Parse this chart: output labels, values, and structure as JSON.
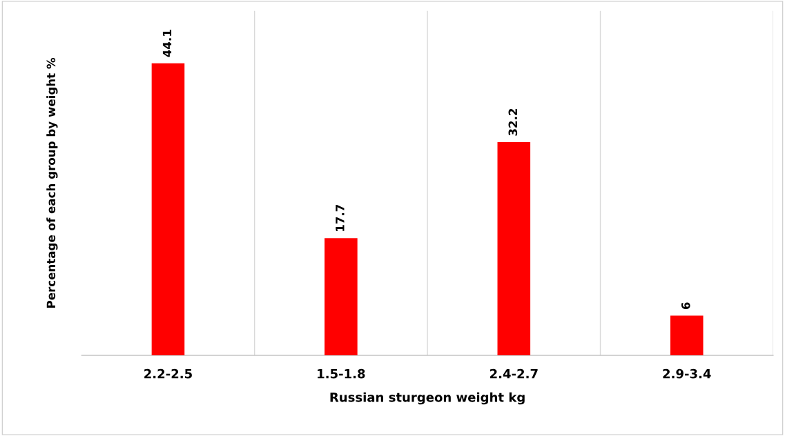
{
  "chart_data": {
    "type": "bar",
    "xlabel": "Russian sturgeon weight kg",
    "ylabel": "Percentage of each group by weight %",
    "categories": [
      "2.2-2.5",
      "1.5-1.8",
      "2.4-2.7",
      "2.9-3.4"
    ],
    "values": [
      44.1,
      17.7,
      32.2,
      6
    ],
    "color": "#ff0000",
    "ylim": [
      0,
      52
    ],
    "tick_labels": "x",
    "grid": "x",
    "data_labels": true,
    "legend": false
  }
}
